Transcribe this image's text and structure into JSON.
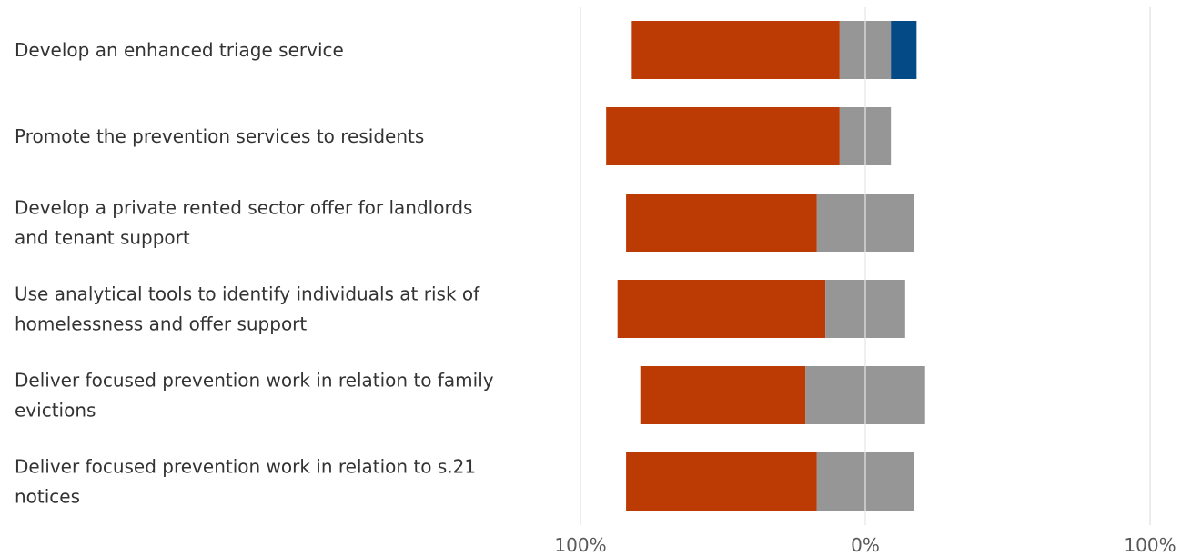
{
  "chart_data": {
    "type": "bar",
    "orientation": "horizontal",
    "stacking": "diverging",
    "categories": [
      [
        "Develop an enhanced triage service"
      ],
      [
        "Promote the prevention services to residents"
      ],
      [
        "Develop a private rented sector offer for landlords",
        "and tenant support"
      ],
      [
        "Use analytical tools to identify individuals at risk of",
        "homelessness and offer support"
      ],
      [
        "Deliver focused prevention work in relation to family",
        "evictions"
      ],
      [
        "Deliver focused prevention work in relation to s.21",
        "notices"
      ]
    ],
    "series": [
      {
        "color": "#bc3a03",
        "side": "negative",
        "values": [
          73,
          82,
          67,
          73,
          58,
          67
        ]
      },
      {
        "color": "#969696",
        "side": "split",
        "negative_values": [
          9,
          9,
          17,
          14,
          21,
          17
        ],
        "positive_values": [
          9,
          9,
          17,
          14,
          21,
          17
        ]
      },
      {
        "color": "#044a87",
        "side": "positive",
        "values": [
          9,
          0,
          0,
          0,
          0,
          0
        ]
      }
    ],
    "xlim": [
      -100,
      100
    ],
    "xticks": [
      -100,
      0,
      100
    ],
    "tick_labels": [
      "100%",
      "0%",
      "100%"
    ],
    "grid": true,
    "legend": "none"
  }
}
